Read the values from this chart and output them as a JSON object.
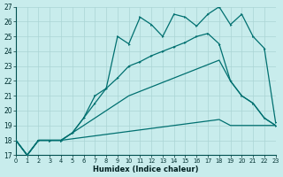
{
  "xlabel": "Humidex (Indice chaleur)",
  "bg_color": "#c8ecec",
  "grid_color": "#aad4d4",
  "line_color": "#007070",
  "xlim": [
    0,
    23
  ],
  "ylim": [
    17,
    27
  ],
  "xticks": [
    0,
    1,
    2,
    3,
    4,
    5,
    6,
    7,
    8,
    9,
    10,
    11,
    12,
    13,
    14,
    15,
    16,
    17,
    18,
    19,
    20,
    21,
    22,
    23
  ],
  "yticks": [
    17,
    18,
    19,
    20,
    21,
    22,
    23,
    24,
    25,
    26,
    27
  ],
  "line1_x": [
    0,
    1,
    2,
    3,
    4,
    5,
    6,
    7,
    8,
    9,
    10,
    11,
    12,
    13,
    14,
    15,
    16,
    17,
    18,
    19,
    20,
    21,
    22,
    23
  ],
  "line1_y": [
    18.0,
    17.0,
    18.0,
    18.0,
    18.0,
    18.1,
    18.2,
    18.3,
    18.4,
    18.5,
    18.6,
    18.7,
    18.8,
    18.9,
    19.0,
    19.1,
    19.2,
    19.3,
    19.4,
    19.0,
    19.0,
    19.0,
    19.0,
    19.0
  ],
  "line2_x": [
    0,
    1,
    2,
    3,
    4,
    5,
    6,
    7,
    8,
    9,
    10,
    11,
    12,
    13,
    14,
    15,
    16,
    17,
    18,
    19,
    20,
    21,
    22,
    23
  ],
  "line2_y": [
    18.0,
    17.0,
    18.0,
    18.0,
    18.0,
    18.5,
    19.0,
    19.5,
    20.0,
    20.5,
    21.0,
    21.3,
    21.6,
    21.9,
    22.2,
    22.5,
    22.8,
    23.1,
    23.4,
    22.0,
    21.0,
    20.5,
    19.5,
    19.0
  ],
  "line3_x": [
    0,
    1,
    2,
    3,
    4,
    5,
    6,
    7,
    8,
    9,
    10,
    11,
    12,
    13,
    14,
    15,
    16,
    17,
    18,
    19,
    20,
    21,
    22,
    23
  ],
  "line3_y": [
    18.0,
    17.0,
    18.0,
    18.0,
    18.0,
    18.5,
    19.5,
    20.5,
    21.5,
    22.2,
    23.0,
    23.3,
    23.7,
    24.0,
    24.3,
    24.6,
    25.0,
    25.2,
    24.5,
    22.0,
    21.0,
    20.5,
    19.5,
    19.0
  ],
  "line4_x": [
    0,
    1,
    2,
    3,
    4,
    5,
    6,
    7,
    8,
    9,
    10,
    11,
    12,
    13,
    14,
    15,
    16,
    17,
    18,
    19,
    20,
    21,
    22,
    23
  ],
  "line4_y": [
    18.0,
    17.0,
    18.0,
    18.0,
    18.0,
    18.5,
    19.5,
    21.0,
    21.5,
    25.0,
    24.5,
    26.3,
    25.8,
    25.0,
    26.5,
    26.3,
    25.7,
    26.5,
    27.0,
    25.8,
    26.5,
    25.0,
    24.2,
    19.2
  ]
}
